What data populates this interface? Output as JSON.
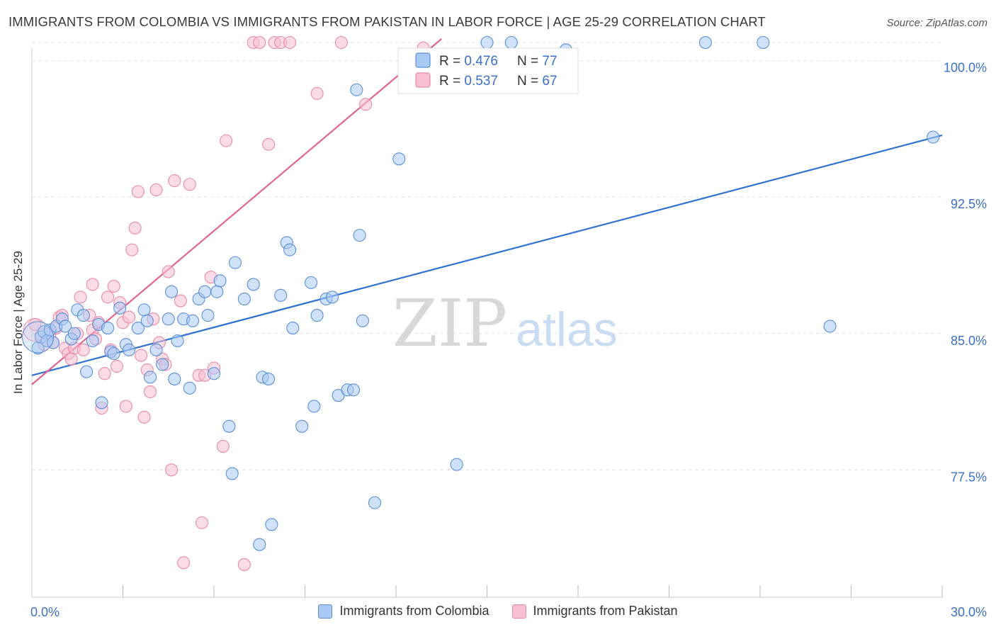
{
  "title": "IMMIGRANTS FROM COLOMBIA VS IMMIGRANTS FROM PAKISTAN IN LABOR FORCE | AGE 25-29 CORRELATION CHART",
  "source": "Source: ZipAtlas.com",
  "watermark": {
    "zip": "ZIP",
    "atlas": "atlas"
  },
  "colors": {
    "colombia_fill": "#a9c9f5",
    "colombia_stroke": "#5b8fd6",
    "colombia_line": "#2f72d0",
    "pakistan_fill": "#f8bfd1",
    "pakistan_stroke": "#e88aa8",
    "pakistan_line": "#e2658f",
    "value_text": "#3a70c8",
    "grid": "#e2e2e2"
  },
  "legend_box": {
    "rows": [
      {
        "r_label": "R = ",
        "r_value": "0.476",
        "n_label": "N = ",
        "n_value": "77"
      },
      {
        "r_label": "R = ",
        "r_value": "0.537",
        "n_label": "N = ",
        "n_value": "67"
      }
    ]
  },
  "chart_data": {
    "type": "scatter",
    "title": "IMMIGRANTS FROM COLOMBIA VS IMMIGRANTS FROM PAKISTAN IN LABOR FORCE | AGE 25-29 CORRELATION CHART",
    "xlabel": "",
    "ylabel": "In Labor Force | Age 25-29",
    "xlim": [
      0,
      30
    ],
    "ylim": [
      70.5,
      101
    ],
    "x_tick_labels": [
      "0.0%",
      "30.0%"
    ],
    "y_ticks": [
      77.5,
      85.0,
      92.5,
      100.0
    ],
    "y_tick_labels": [
      "77.5%",
      "85.0%",
      "92.5%",
      "100.0%"
    ],
    "grid": true,
    "legend_position": "top-center",
    "series": [
      {
        "name": "Immigrants from Colombia",
        "r": 0.476,
        "n": 77,
        "trend": {
          "x": [
            0,
            30
          ],
          "y": [
            82.7,
            95.9
          ]
        },
        "points": [
          [
            0.2,
            84.2
          ],
          [
            0.3,
            84.8
          ],
          [
            0.4,
            85.1
          ],
          [
            0.5,
            84.6
          ],
          [
            0.6,
            85.2
          ],
          [
            0.7,
            84.5
          ],
          [
            0.8,
            85.4
          ],
          [
            1.0,
            85.8
          ],
          [
            1.1,
            85.4
          ],
          [
            1.3,
            84.7
          ],
          [
            1.4,
            85.0
          ],
          [
            1.5,
            86.3
          ],
          [
            1.7,
            86.0
          ],
          [
            1.8,
            82.9
          ],
          [
            2.0,
            84.6
          ],
          [
            2.2,
            85.5
          ],
          [
            2.3,
            81.2
          ],
          [
            2.5,
            85.3
          ],
          [
            2.6,
            84.0
          ],
          [
            2.7,
            83.9
          ],
          [
            2.9,
            86.4
          ],
          [
            3.1,
            84.4
          ],
          [
            3.2,
            84.1
          ],
          [
            3.5,
            85.3
          ],
          [
            3.7,
            86.3
          ],
          [
            3.8,
            85.7
          ],
          [
            3.9,
            82.6
          ],
          [
            4.1,
            84.1
          ],
          [
            4.3,
            83.3
          ],
          [
            4.5,
            85.8
          ],
          [
            4.6,
            87.3
          ],
          [
            4.7,
            82.5
          ],
          [
            4.8,
            84.6
          ],
          [
            5.0,
            85.8
          ],
          [
            5.2,
            82.0
          ],
          [
            5.3,
            85.7
          ],
          [
            5.5,
            86.9
          ],
          [
            5.7,
            87.3
          ],
          [
            5.8,
            86.0
          ],
          [
            6.0,
            82.8
          ],
          [
            6.1,
            87.3
          ],
          [
            6.2,
            87.9
          ],
          [
            6.5,
            79.9
          ],
          [
            6.6,
            77.3
          ],
          [
            6.7,
            88.9
          ],
          [
            7.0,
            86.9
          ],
          [
            7.3,
            87.7
          ],
          [
            7.6,
            82.6
          ],
          [
            7.8,
            82.5
          ],
          [
            7.9,
            74.5
          ],
          [
            7.5,
            73.4
          ],
          [
            8.2,
            87.1
          ],
          [
            8.4,
            90.0
          ],
          [
            8.5,
            89.6
          ],
          [
            8.6,
            85.3
          ],
          [
            8.9,
            79.9
          ],
          [
            9.2,
            87.8
          ],
          [
            9.4,
            86.0
          ],
          [
            9.3,
            81.0
          ],
          [
            9.7,
            86.9
          ],
          [
            9.9,
            87.0
          ],
          [
            10.1,
            81.6
          ],
          [
            10.4,
            81.9
          ],
          [
            10.6,
            81.9
          ],
          [
            10.7,
            98.4
          ],
          [
            10.8,
            90.4
          ],
          [
            10.9,
            85.7
          ],
          [
            11.3,
            75.7
          ],
          [
            12.1,
            94.6
          ],
          [
            14.0,
            77.8
          ],
          [
            15.8,
            101.0
          ],
          [
            17.6,
            100.6
          ],
          [
            22.2,
            101.0
          ],
          [
            24.1,
            101.0
          ],
          [
            26.3,
            85.4
          ],
          [
            29.7,
            95.8
          ],
          [
            15.0,
            101.0
          ]
        ]
      },
      {
        "name": "Immigrants from Pakistan",
        "r": 0.537,
        "n": 67,
        "trend": {
          "x": [
            0,
            13.5
          ],
          "y": [
            82.2,
            101.2
          ]
        },
        "points": [
          [
            0.1,
            85.5
          ],
          [
            0.3,
            84.9
          ],
          [
            0.4,
            84.4
          ],
          [
            0.6,
            85.0
          ],
          [
            0.7,
            84.5
          ],
          [
            0.8,
            85.3
          ],
          [
            0.9,
            85.9
          ],
          [
            1.0,
            86.0
          ],
          [
            1.1,
            84.2
          ],
          [
            1.2,
            83.9
          ],
          [
            1.3,
            83.6
          ],
          [
            1.4,
            84.2
          ],
          [
            1.5,
            85.0
          ],
          [
            1.6,
            87.0
          ],
          [
            1.7,
            84.1
          ],
          [
            1.9,
            86.0
          ],
          [
            2.0,
            85.2
          ],
          [
            2.1,
            84.7
          ],
          [
            2.2,
            85.6
          ],
          [
            2.0,
            87.7
          ],
          [
            2.3,
            80.9
          ],
          [
            2.4,
            82.8
          ],
          [
            2.5,
            87.0
          ],
          [
            2.6,
            84.1
          ],
          [
            2.7,
            87.6
          ],
          [
            2.8,
            83.2
          ],
          [
            2.9,
            86.7
          ],
          [
            3.0,
            85.6
          ],
          [
            3.1,
            81.0
          ],
          [
            3.2,
            85.9
          ],
          [
            3.3,
            89.6
          ],
          [
            3.4,
            90.8
          ],
          [
            3.5,
            92.8
          ],
          [
            3.6,
            83.8
          ],
          [
            3.7,
            80.4
          ],
          [
            3.8,
            83.0
          ],
          [
            3.9,
            81.8
          ],
          [
            4.0,
            85.8
          ],
          [
            4.1,
            92.9
          ],
          [
            4.2,
            84.5
          ],
          [
            4.3,
            83.6
          ],
          [
            4.4,
            83.3
          ],
          [
            4.5,
            88.4
          ],
          [
            4.6,
            77.5
          ],
          [
            4.7,
            93.4
          ],
          [
            4.9,
            86.8
          ],
          [
            5.2,
            93.2
          ],
          [
            5.0,
            72.4
          ],
          [
            5.5,
            82.7
          ],
          [
            5.6,
            74.6
          ],
          [
            5.7,
            82.7
          ],
          [
            5.9,
            88.1
          ],
          [
            6.0,
            83.1
          ],
          [
            6.3,
            78.8
          ],
          [
            6.4,
            95.6
          ],
          [
            7.0,
            72.3
          ],
          [
            7.3,
            101.0
          ],
          [
            7.5,
            101.0
          ],
          [
            7.8,
            95.4
          ],
          [
            8.0,
            101.0
          ],
          [
            8.2,
            101.0
          ],
          [
            8.5,
            101.0
          ],
          [
            9.4,
            98.2
          ],
          [
            10.2,
            101.0
          ],
          [
            11.0,
            97.6
          ],
          [
            13.0,
            100.0
          ],
          [
            12.9,
            100.7
          ]
        ]
      }
    ]
  },
  "legend": {
    "colombia": "Immigrants from Colombia",
    "pakistan": "Immigrants from Pakistan"
  }
}
